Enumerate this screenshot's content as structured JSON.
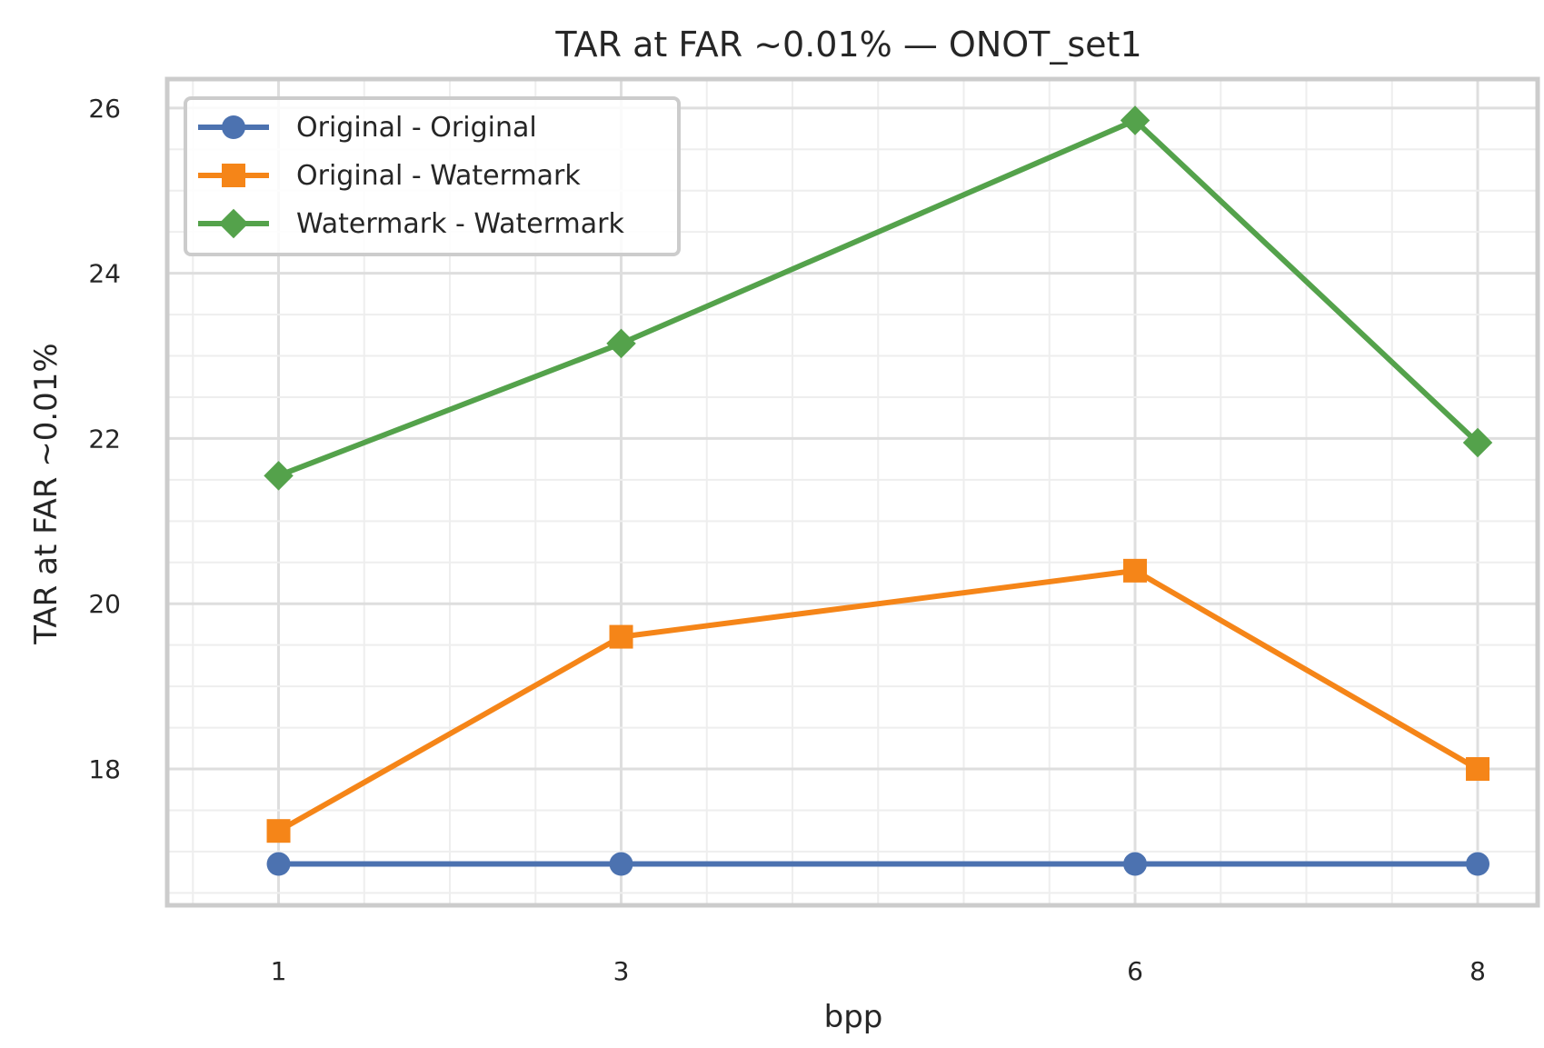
{
  "chart_data": {
    "type": "line",
    "title": "TAR at FAR ~0.01% — ONOT_set1",
    "xlabel": "bpp",
    "ylabel": "TAR at FAR ~0.01%",
    "x": [
      1,
      3,
      6,
      8
    ],
    "x_ticks": [
      "1",
      "3",
      "6",
      "8"
    ],
    "y_ticks": [
      "18",
      "20",
      "22",
      "24",
      "26"
    ],
    "xlim": [
      0.35,
      8.35
    ],
    "ylim": [
      16.35,
      26.35
    ],
    "grid": true,
    "legend_position": "top-left",
    "series": [
      {
        "name": "Original - Original",
        "color": "#4c72b0",
        "marker": "circle",
        "values": [
          16.85,
          16.85,
          16.85,
          16.85
        ]
      },
      {
        "name": "Original - Watermark",
        "color": "#f58518",
        "marker": "square",
        "values": [
          17.25,
          19.6,
          20.4,
          18.0
        ]
      },
      {
        "name": "Watermark - Watermark",
        "color": "#54a24b",
        "marker": "diamond",
        "values": [
          21.55,
          23.15,
          25.85,
          21.95
        ]
      }
    ]
  }
}
